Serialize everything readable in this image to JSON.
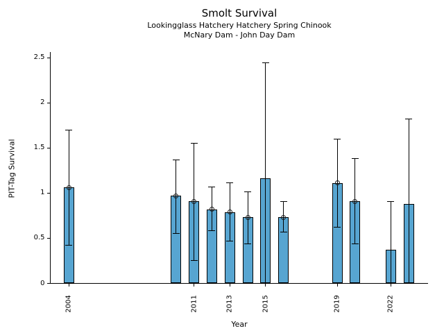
{
  "header": {
    "title": "Smolt Survival",
    "subtitle_line1": "Lookingglass Hatchery Hatchery Spring Chinook",
    "subtitle_line2": "McNary Dam - John Day Dam"
  },
  "chart_data": {
    "type": "bar",
    "title": "Smolt Survival",
    "subtitle": [
      "Lookingglass Hatchery Hatchery Spring Chinook",
      "McNary Dam - John Day Dam"
    ],
    "xlabel": "Year",
    "ylabel": "PIT-Tag Survival",
    "ylim": [
      0,
      2.5
    ],
    "xlim": [
      2003,
      2024.3
    ],
    "grid": false,
    "legend": "none",
    "ytick_labels": [
      "0",
      "0.5",
      "1",
      "1.5",
      "2",
      "2.5"
    ],
    "ytick_values": [
      0,
      0.5,
      1,
      1.5,
      2,
      2.5
    ],
    "xtick_labels": [
      "2004",
      "2011",
      "2013",
      "2015",
      "2019",
      "2022"
    ],
    "xtick_values": [
      2004,
      2011,
      2013,
      2015,
      2019,
      2022
    ],
    "bar_fill_color": "#57A5D1",
    "bar_edge_color": "#000000",
    "error_bar_color": "#000000",
    "points": [
      {
        "year": 2004,
        "value": 1.06,
        "ci_low": 0.42,
        "ci_high": 1.7,
        "marker": true
      },
      {
        "year": 2010,
        "value": 0.97,
        "ci_low": 0.55,
        "ci_high": 1.37,
        "marker": true
      },
      {
        "year": 2011,
        "value": 0.91,
        "ci_low": 0.25,
        "ci_high": 1.55,
        "marker": true
      },
      {
        "year": 2012,
        "value": 0.82,
        "ci_low": 0.58,
        "ci_high": 1.07,
        "marker": true
      },
      {
        "year": 2013,
        "value": 0.79,
        "ci_low": 0.47,
        "ci_high": 1.11,
        "marker": true
      },
      {
        "year": 2014,
        "value": 0.73,
        "ci_low": 0.44,
        "ci_high": 1.01,
        "marker": true
      },
      {
        "year": 2015,
        "value": 1.16,
        "ci_low": 0.0,
        "ci_high": 2.44,
        "marker": false
      },
      {
        "year": 2016,
        "value": 0.73,
        "ci_low": 0.57,
        "ci_high": 0.91,
        "marker": true
      },
      {
        "year": 2019,
        "value": 1.11,
        "ci_low": 0.62,
        "ci_high": 1.6,
        "marker": true
      },
      {
        "year": 2020,
        "value": 0.91,
        "ci_low": 0.44,
        "ci_high": 1.38,
        "marker": true
      },
      {
        "year": 2022,
        "value": 0.37,
        "ci_low": 0.0,
        "ci_high": 0.91,
        "marker": false
      },
      {
        "year": 2023,
        "value": 0.88,
        "ci_low": 0.0,
        "ci_high": 1.82,
        "marker": false
      }
    ]
  }
}
